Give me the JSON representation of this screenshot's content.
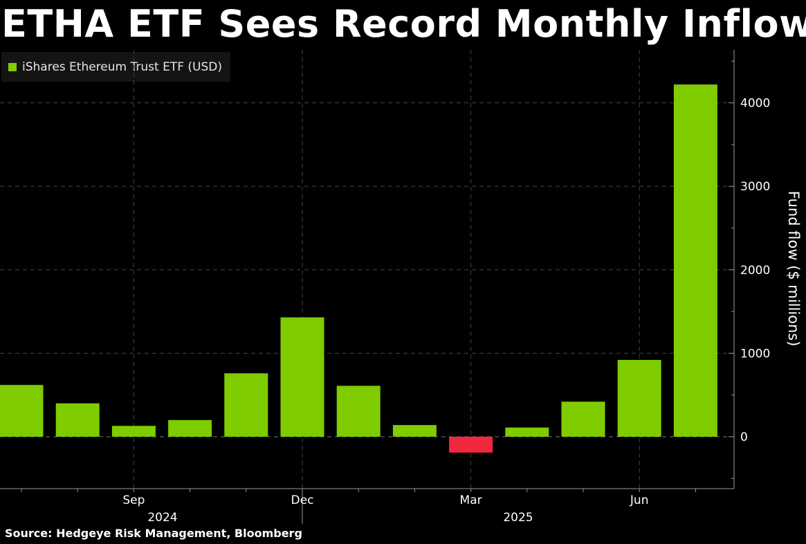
{
  "title": "ETHA ETF Sees Record Monthly Inflow",
  "source": "Source: Hedgeye Risk Management, Bloomberg",
  "colors": {
    "background": "#000000",
    "positive": "#7fcc00",
    "negative": "#f2273e",
    "grid": "#444444",
    "axis": "#9a9a9a"
  },
  "chart_data": {
    "type": "bar",
    "legend": {
      "entries": [
        "iShares Ethereum Trust ETF (USD)"
      ],
      "placement": "top-left"
    },
    "ylabel": "Fund flow ($ millions)",
    "ylim": [
      -500,
      4600
    ],
    "yticks": [
      0,
      1000,
      2000,
      3000,
      4000
    ],
    "ytick_labels": [
      "0",
      "1000",
      "2000",
      "3000",
      "4000"
    ],
    "xtick_labels": [
      "Sep",
      "Dec",
      "Mar",
      "Jun"
    ],
    "year_labels": [
      "2024",
      "2025"
    ],
    "grid": true,
    "categories": [
      "2024-07",
      "2024-08",
      "2024-09",
      "2024-10",
      "2024-11",
      "2024-12",
      "2025-01",
      "2025-02",
      "2025-03",
      "2025-04",
      "2025-05",
      "2025-06",
      "2025-07"
    ],
    "series": [
      {
        "name": "iShares Ethereum Trust ETF (USD)",
        "values": [
          620,
          400,
          130,
          200,
          760,
          1430,
          610,
          140,
          -190,
          110,
          420,
          920,
          4220
        ]
      }
    ]
  }
}
